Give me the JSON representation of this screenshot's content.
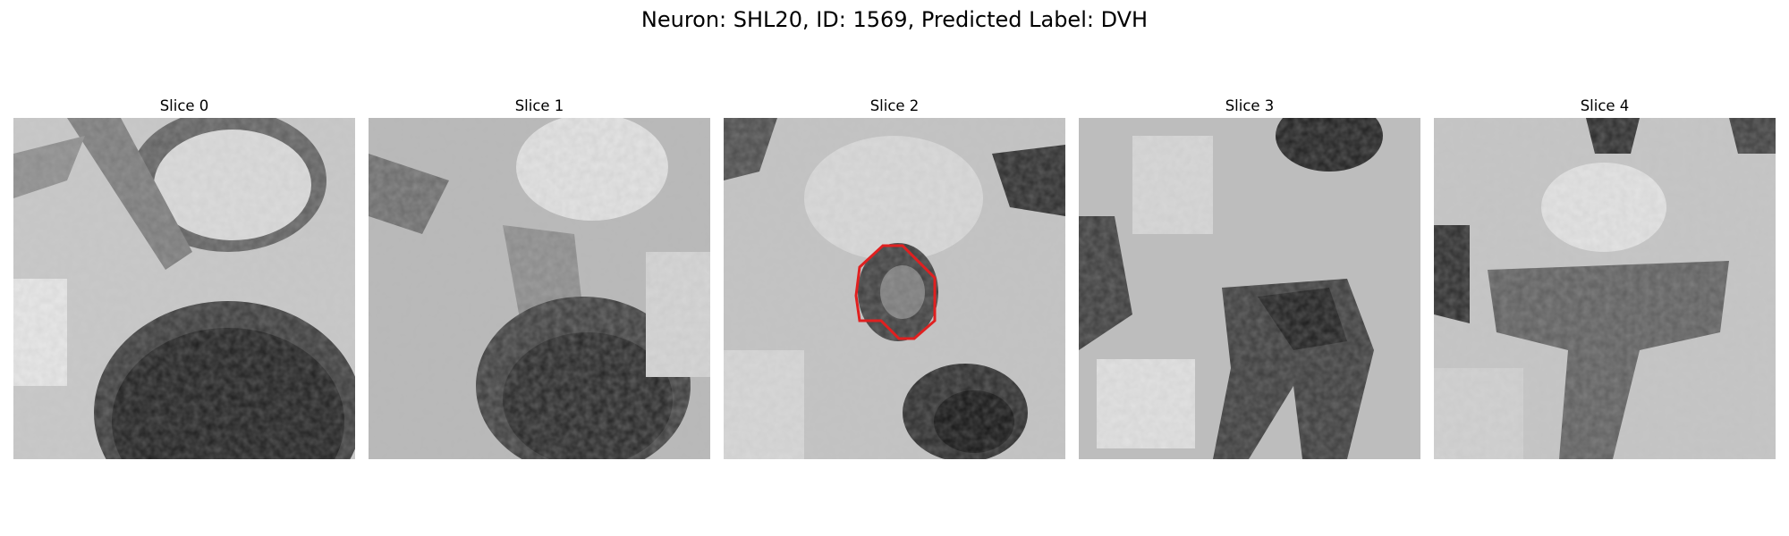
{
  "figure": {
    "title": "Neuron: SHL20, ID: 1569, Predicted Label: DVH"
  },
  "panels": [
    {
      "title": "Slice 0"
    },
    {
      "title": "Slice 1"
    },
    {
      "title": "Slice 2"
    },
    {
      "title": "Slice 3"
    },
    {
      "title": "Slice 4"
    }
  ],
  "colors": {
    "outline": "#e02020"
  }
}
